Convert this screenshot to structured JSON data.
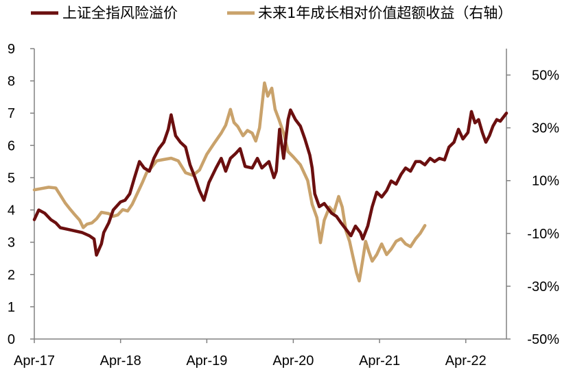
{
  "chart_data": {
    "type": "line",
    "legend": {
      "placement": "top",
      "entries": [
        {
          "name": "上证全指风险溢价",
          "color": "#6B0F0F",
          "axis": "left"
        },
        {
          "name": "未来1年成长相对价值超额收益（右轴）",
          "color": "#C9A26B",
          "axis": "right"
        }
      ]
    },
    "x_axis": {
      "range": [
        "2017-04-01",
        "2022-09-20"
      ],
      "ticks": [
        {
          "date": "2017-04-01",
          "label": "Apr-17"
        },
        {
          "date": "2018-04-01",
          "label": "Apr-18"
        },
        {
          "date": "2019-04-01",
          "label": "Apr-19"
        },
        {
          "date": "2020-04-01",
          "label": "Apr-20"
        },
        {
          "date": "2021-04-01",
          "label": "Apr-21"
        },
        {
          "date": "2022-04-01",
          "label": "Apr-22"
        }
      ]
    },
    "y_left": {
      "range": [
        0,
        9
      ],
      "ticks": [
        {
          "value": 0,
          "label": "0"
        },
        {
          "value": 1,
          "label": "1"
        },
        {
          "value": 2,
          "label": "2"
        },
        {
          "value": 3,
          "label": "3"
        },
        {
          "value": 4,
          "label": "4"
        },
        {
          "value": 5,
          "label": "5"
        },
        {
          "value": 6,
          "label": "6"
        },
        {
          "value": 7,
          "label": "7"
        },
        {
          "value": 8,
          "label": "8"
        },
        {
          "value": 9,
          "label": "9"
        }
      ]
    },
    "y_right": {
      "range": [
        -50,
        60
      ],
      "unit": "%",
      "ticks": [
        {
          "value": -50,
          "label": "-50%"
        },
        {
          "value": -30,
          "label": "-30%"
        },
        {
          "value": -10,
          "label": "-10%"
        },
        {
          "value": 10,
          "label": "10%"
        },
        {
          "value": 30,
          "label": "30%"
        },
        {
          "value": 50,
          "label": "50%"
        }
      ]
    },
    "grid": false,
    "series": [
      {
        "name": "上证全指风险溢价",
        "axis": "left",
        "color": "#6B0F0F",
        "points": [
          [
            "2017-04-01",
            3.7
          ],
          [
            "2017-04-20",
            4.0
          ],
          [
            "2017-05-15",
            3.9
          ],
          [
            "2017-06-10",
            3.7
          ],
          [
            "2017-07-01",
            3.6
          ],
          [
            "2017-07-20",
            3.45
          ],
          [
            "2017-08-20",
            3.4
          ],
          [
            "2017-09-20",
            3.35
          ],
          [
            "2017-10-20",
            3.3
          ],
          [
            "2017-11-20",
            3.2
          ],
          [
            "2017-12-10",
            3.1
          ],
          [
            "2017-12-20",
            2.6
          ],
          [
            "2018-01-10",
            2.95
          ],
          [
            "2018-01-20",
            3.3
          ],
          [
            "2018-02-10",
            3.6
          ],
          [
            "2018-03-01",
            4.0
          ],
          [
            "2018-04-01",
            4.25
          ],
          [
            "2018-04-20",
            4.3
          ],
          [
            "2018-05-10",
            4.5
          ],
          [
            "2018-05-30",
            5.0
          ],
          [
            "2018-06-20",
            5.5
          ],
          [
            "2018-07-10",
            5.3
          ],
          [
            "2018-08-01",
            5.2
          ],
          [
            "2018-08-20",
            5.6
          ],
          [
            "2018-09-10",
            5.9
          ],
          [
            "2018-10-01",
            6.1
          ],
          [
            "2018-10-20",
            6.5
          ],
          [
            "2018-11-01",
            6.95
          ],
          [
            "2018-11-20",
            6.3
          ],
          [
            "2018-12-10",
            6.1
          ],
          [
            "2019-01-01",
            5.95
          ],
          [
            "2019-01-20",
            5.4
          ],
          [
            "2019-02-10",
            5.0
          ],
          [
            "2019-03-01",
            4.6
          ],
          [
            "2019-03-20",
            4.3
          ],
          [
            "2019-04-10",
            4.85
          ],
          [
            "2019-05-10",
            5.3
          ],
          [
            "2019-06-01",
            5.6
          ],
          [
            "2019-06-20",
            5.2
          ],
          [
            "2019-07-10",
            5.6
          ],
          [
            "2019-08-01",
            5.75
          ],
          [
            "2019-08-20",
            5.9
          ],
          [
            "2019-09-10",
            5.35
          ],
          [
            "2019-10-10",
            5.3
          ],
          [
            "2019-11-01",
            5.6
          ],
          [
            "2019-11-20",
            5.3
          ],
          [
            "2019-12-20",
            5.5
          ],
          [
            "2020-01-10",
            5.0
          ],
          [
            "2020-01-20",
            5.2
          ],
          [
            "2020-02-03",
            6.5
          ],
          [
            "2020-02-20",
            5.6
          ],
          [
            "2020-03-10",
            6.8
          ],
          [
            "2020-03-20",
            7.1
          ],
          [
            "2020-04-10",
            6.8
          ],
          [
            "2020-05-01",
            6.6
          ],
          [
            "2020-05-20",
            6.2
          ],
          [
            "2020-06-10",
            5.7
          ],
          [
            "2020-06-20",
            5.3
          ],
          [
            "2020-07-01",
            4.5
          ],
          [
            "2020-07-20",
            4.1
          ],
          [
            "2020-08-10",
            4.2
          ],
          [
            "2020-09-10",
            3.9
          ],
          [
            "2020-10-01",
            3.8
          ],
          [
            "2020-10-20",
            3.6
          ],
          [
            "2020-11-10",
            3.4
          ],
          [
            "2020-12-01",
            3.2
          ],
          [
            "2020-12-20",
            3.5
          ],
          [
            "2021-01-10",
            3.3
          ],
          [
            "2021-01-20",
            3.1
          ],
          [
            "2021-02-10",
            3.5
          ],
          [
            "2021-03-01",
            4.1
          ],
          [
            "2021-03-20",
            4.55
          ],
          [
            "2021-04-10",
            4.4
          ],
          [
            "2021-05-01",
            4.6
          ],
          [
            "2021-05-20",
            4.9
          ],
          [
            "2021-06-10",
            4.8
          ],
          [
            "2021-07-01",
            5.1
          ],
          [
            "2021-07-20",
            5.3
          ],
          [
            "2021-08-10",
            5.2
          ],
          [
            "2021-09-01",
            5.5
          ],
          [
            "2021-09-20",
            5.5
          ],
          [
            "2021-10-10",
            5.4
          ],
          [
            "2021-11-01",
            5.6
          ],
          [
            "2021-11-20",
            5.5
          ],
          [
            "2021-12-10",
            5.6
          ],
          [
            "2022-01-01",
            5.55
          ],
          [
            "2022-01-20",
            5.95
          ],
          [
            "2022-02-10",
            6.1
          ],
          [
            "2022-03-01",
            6.5
          ],
          [
            "2022-03-20",
            6.2
          ],
          [
            "2022-04-10",
            6.4
          ],
          [
            "2022-04-25",
            7.05
          ],
          [
            "2022-05-10",
            6.7
          ],
          [
            "2022-05-25",
            6.8
          ],
          [
            "2022-06-10",
            6.4
          ],
          [
            "2022-06-25",
            6.1
          ],
          [
            "2022-07-10",
            6.3
          ],
          [
            "2022-07-25",
            6.6
          ],
          [
            "2022-08-10",
            6.8
          ],
          [
            "2022-08-25",
            6.75
          ],
          [
            "2022-09-20",
            7.0
          ]
        ]
      },
      {
        "name": "未来1年成长相对价值超额收益（右轴）",
        "axis": "right",
        "color": "#C9A26B",
        "points": [
          [
            "2017-04-01",
            6.5
          ],
          [
            "2017-05-01",
            7.0
          ],
          [
            "2017-06-01",
            7.5
          ],
          [
            "2017-07-01",
            7.2
          ],
          [
            "2017-07-20",
            4.5
          ],
          [
            "2017-08-10",
            1.5
          ],
          [
            "2017-09-01",
            -1.0
          ],
          [
            "2017-09-20",
            -3.0
          ],
          [
            "2017-10-10",
            -5.0
          ],
          [
            "2017-10-25",
            -7.8
          ],
          [
            "2017-11-10",
            -6.5
          ],
          [
            "2017-12-01",
            -6.0
          ],
          [
            "2017-12-20",
            -4.5
          ],
          [
            "2018-01-10",
            -2.0
          ],
          [
            "2018-02-10",
            -2.5
          ],
          [
            "2018-03-01",
            -3.5
          ],
          [
            "2018-03-20",
            -3.0
          ],
          [
            "2018-04-10",
            -1.0
          ],
          [
            "2018-05-01",
            -1.5
          ],
          [
            "2018-05-20",
            1.0
          ],
          [
            "2018-06-10",
            5.0
          ],
          [
            "2018-07-01",
            9.0
          ],
          [
            "2018-07-20",
            13.0
          ],
          [
            "2018-08-10",
            15.0
          ],
          [
            "2018-09-01",
            17.5
          ],
          [
            "2018-10-01",
            18.0
          ],
          [
            "2018-11-01",
            18.5
          ],
          [
            "2018-12-01",
            17.5
          ],
          [
            "2019-01-01",
            13.0
          ],
          [
            "2019-02-01",
            12.0
          ],
          [
            "2019-03-01",
            14.0
          ],
          [
            "2019-04-01",
            20.0
          ],
          [
            "2019-05-01",
            24.0
          ],
          [
            "2019-06-01",
            28.0
          ],
          [
            "2019-06-20",
            31.0
          ],
          [
            "2019-07-10",
            37.0
          ],
          [
            "2019-07-25",
            32.0
          ],
          [
            "2019-08-10",
            30.5
          ],
          [
            "2019-09-01",
            27.0
          ],
          [
            "2019-09-20",
            29.0
          ],
          [
            "2019-10-10",
            28.0
          ],
          [
            "2019-10-25",
            25.0
          ],
          [
            "2019-11-10",
            30.0
          ],
          [
            "2019-12-01",
            47.0
          ],
          [
            "2019-12-15",
            42.0
          ],
          [
            "2020-01-01",
            45.0
          ],
          [
            "2020-01-15",
            37.0
          ],
          [
            "2020-02-01",
            33.0
          ],
          [
            "2020-02-20",
            28.0
          ],
          [
            "2020-03-10",
            21.0
          ],
          [
            "2020-04-01",
            19.0
          ],
          [
            "2020-05-01",
            16.0
          ],
          [
            "2020-06-01",
            10.0
          ],
          [
            "2020-06-20",
            1.0
          ],
          [
            "2020-07-10",
            -4.0
          ],
          [
            "2020-07-25",
            -13.5
          ],
          [
            "2020-08-10",
            -5.0
          ],
          [
            "2020-09-01",
            0.0
          ],
          [
            "2020-09-20",
            -2.0
          ],
          [
            "2020-10-10",
            4.0
          ],
          [
            "2020-10-25",
            0.0
          ],
          [
            "2020-11-10",
            -9.0
          ],
          [
            "2020-11-25",
            -13.0
          ],
          [
            "2020-12-10",
            -19.0
          ],
          [
            "2020-12-25",
            -25.0
          ],
          [
            "2021-01-05",
            -28.0
          ],
          [
            "2021-01-20",
            -20.0
          ],
          [
            "2021-02-01",
            -13.0
          ],
          [
            "2021-02-15",
            -17.0
          ],
          [
            "2021-03-01",
            -20.5
          ],
          [
            "2021-03-20",
            -18.0
          ],
          [
            "2021-04-10",
            -14.0
          ],
          [
            "2021-05-01",
            -18.0
          ],
          [
            "2021-05-20",
            -16.0
          ],
          [
            "2021-06-10",
            -13.0
          ],
          [
            "2021-07-01",
            -12.0
          ],
          [
            "2021-07-20",
            -14.0
          ],
          [
            "2021-08-10",
            -15.0
          ],
          [
            "2021-09-01",
            -12.0
          ],
          [
            "2021-09-20",
            -10.0
          ],
          [
            "2021-10-10",
            -7.0
          ]
        ]
      }
    ]
  }
}
